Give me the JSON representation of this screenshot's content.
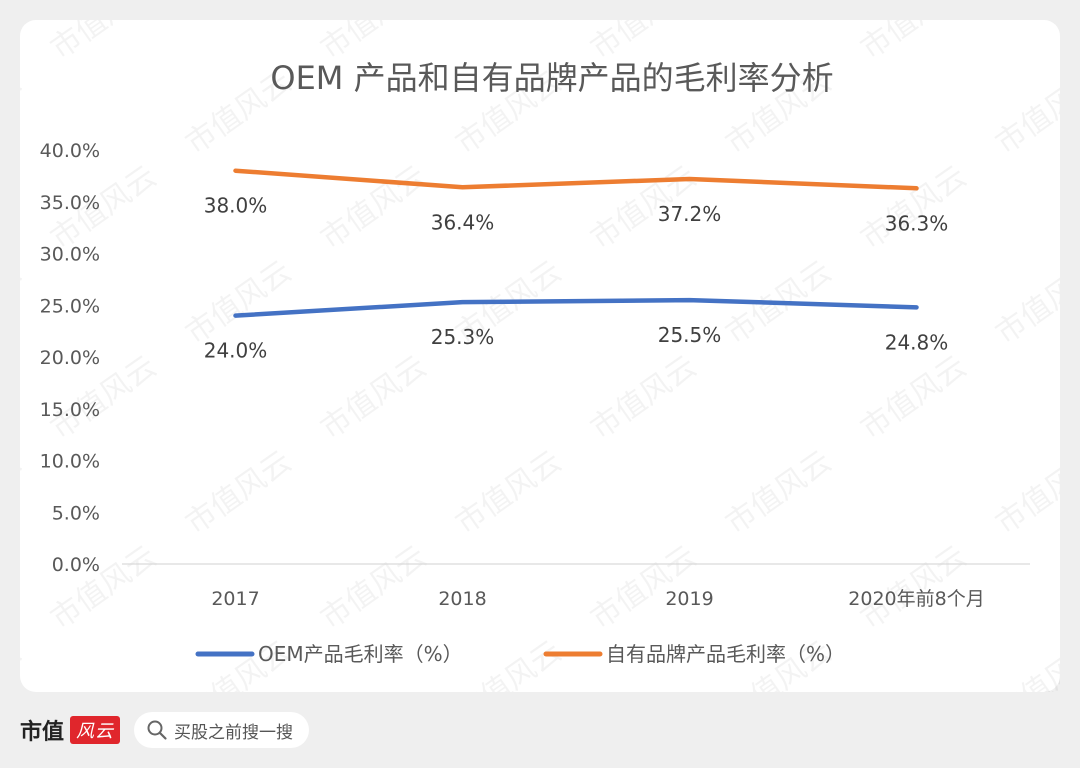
{
  "chart_data": {
    "type": "line",
    "title": "OEM 产品和自有品牌产品的毛利率分析",
    "categories": [
      "2017",
      "2018",
      "2019",
      "2020年前8个月"
    ],
    "series": [
      {
        "name": "OEM产品毛利率（%）",
        "values": [
          24.0,
          25.3,
          25.5,
          24.8
        ],
        "labels": [
          "24.0%",
          "25.3%",
          "25.5%",
          "24.8%"
        ],
        "color": "#4472C4"
      },
      {
        "name": "自有品牌产品毛利率（%）",
        "values": [
          38.0,
          36.4,
          37.2,
          36.3
        ],
        "labels": [
          "38.0%",
          "36.4%",
          "37.2%",
          "36.3%"
        ],
        "color": "#ED7D31"
      }
    ],
    "ylim": [
      0,
      40
    ],
    "yticks": [
      "0.0%",
      "5.0%",
      "10.0%",
      "15.0%",
      "20.0%",
      "25.0%",
      "30.0%",
      "35.0%",
      "40.0%"
    ],
    "grid": false,
    "legend_position": "bottom",
    "xlabel": "",
    "ylabel": ""
  },
  "watermark": "市值风云",
  "footer": {
    "brand": "市值",
    "brand_logo": "风云",
    "search_icon": "search-icon",
    "search_text": "买股之前搜一搜"
  }
}
